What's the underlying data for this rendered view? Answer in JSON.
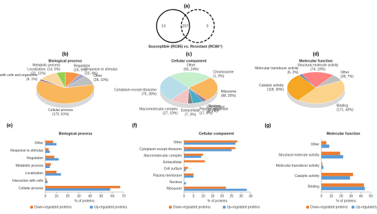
{
  "chart_data": [
    {
      "type": "venn",
      "panel": "(a)",
      "values": [
        13,
        257,
        3
      ],
      "caption": "Susceptible (RC85) vs. Resistant (RC86⁺)"
    },
    {
      "type": "pie",
      "panel": "(b)",
      "title": "Biological process",
      "categories": [
        "Regulation",
        "Response to stimulus",
        "Other",
        "Cellular process",
        "Interaction with cells and organisms",
        "Localization",
        "Metabolic process"
      ],
      "values": [
        24,
        10,
        28,
        172,
        4,
        31,
        14
      ],
      "value_labels": [
        "(24, 9%)",
        "(10, 4%)",
        "(28, 10%)",
        "(172, 61%)",
        "(4, 1%)",
        "(31, 11%)",
        "(14, 5%)"
      ],
      "colors": [
        "#f79646",
        "#a6a6c8",
        "#bfbfbf",
        "#f9b65a",
        "#8064a2",
        "#fad7a0",
        "#92d050"
      ]
    },
    {
      "type": "pie",
      "panel": "(c)",
      "title": "Cellular component",
      "categories": [
        "Other",
        "Chromosome",
        "Ribosome",
        "Nucleus",
        "Cell surface",
        "Plasma membrane",
        "Extracellular",
        "Macromolecular complex",
        "Cytoplasm except ribosome"
      ],
      "values": [
        65,
        1,
        68,
        2,
        4,
        17,
        7,
        27,
        75
      ],
      "value_labels": [
        "(65, 24%)",
        "(1, 0%)",
        "(68, 25%)",
        "(2, 1%)",
        "(4, 1%)",
        "(17, 6%)",
        "(7, 3%)",
        "(27, 10%)",
        "(75, 28%)"
      ],
      "colors": [
        "#c6efce",
        "#4f81bd",
        "#f9b65a",
        "#c0504d",
        "#8064a2",
        "#4bacc6",
        "#7f7f7f",
        "#f2c4c4",
        "#b7dde8"
      ]
    },
    {
      "type": "pie",
      "panel": "(d)",
      "title": "Molecular function",
      "categories": [
        "Structural molecule activity",
        "Other",
        "Binding",
        "Catalytic activity",
        "Molecular transducer activity"
      ],
      "values": [
        74,
        28,
        171,
        118,
        6
      ],
      "value_labels": [
        "(74, 19%)",
        "(28, 7%)",
        "(171, 43%)",
        "(118, 30%)",
        "(6, 2%)"
      ],
      "colors": [
        "#ff8080",
        "#bfbfbf",
        "#fbd38a",
        "#f5a623",
        "#4f81bd"
      ]
    },
    {
      "type": "hbar",
      "panel": "(e)",
      "title": "Biological process",
      "categories": [
        "Other",
        "Response to stimulus",
        "Regulation",
        "Metabolic process",
        "Localization",
        "Interaction with cells",
        "Cellular process"
      ],
      "series": [
        {
          "name": "Down-regulated proteins",
          "color": "#ed7d31",
          "values": [
            7,
            3,
            8,
            5,
            10,
            1,
            67
          ]
        },
        {
          "name": "Up-regulated proteins",
          "color": "#5b9bd5",
          "values": [
            10,
            4,
            12,
            4,
            14,
            2,
            58
          ]
        }
      ],
      "xlim": [
        0,
        70
      ],
      "xticks": [
        0,
        10,
        20,
        30,
        40,
        50,
        60,
        70
      ],
      "xlabel": "% of proteins"
    },
    {
      "type": "hbar",
      "panel": "(f)",
      "title": "Cellular component",
      "categories": [
        "Other",
        "Cytoplasm except ribosome",
        "Macromolecular complex",
        "Extracellular",
        "Cell surface",
        "Plasma membrane",
        "Nucleus",
        "Ribosome"
      ],
      "series": [
        {
          "name": "Down-regulated proteins",
          "color": "#ed7d31",
          "values": [
            28,
            27,
            10,
            11,
            2,
            5,
            0,
            22
          ]
        },
        {
          "name": "Up-regulated proteins",
          "color": "#5b9bd5",
          "values": [
            27,
            25,
            9,
            0,
            1,
            5,
            1,
            33
          ]
        }
      ],
      "xlim": [
        0,
        35
      ],
      "xticks": [
        0,
        5,
        10,
        15,
        20,
        25,
        30,
        35
      ],
      "xlabel": "% of proteins"
    },
    {
      "type": "hbar",
      "panel": "(g)",
      "title": "Molecular function",
      "categories": [
        "Other",
        "Structural molecule activity",
        "Molecular transducer activity",
        "Catalytic activity",
        "Binding"
      ],
      "series": [
        {
          "name": "Down-regulated proteins",
          "color": "#ed7d31",
          "values": [
            5,
            19,
            1,
            32,
            43
          ]
        },
        {
          "name": "Up-regulated proteins",
          "color": "#5b9bd5",
          "values": [
            8,
            22,
            2,
            29,
            44
          ]
        }
      ],
      "xlim": [
        0,
        50
      ],
      "xticks": [
        0,
        10,
        20,
        30,
        40,
        50
      ],
      "xlabel": "% of proteins"
    }
  ]
}
